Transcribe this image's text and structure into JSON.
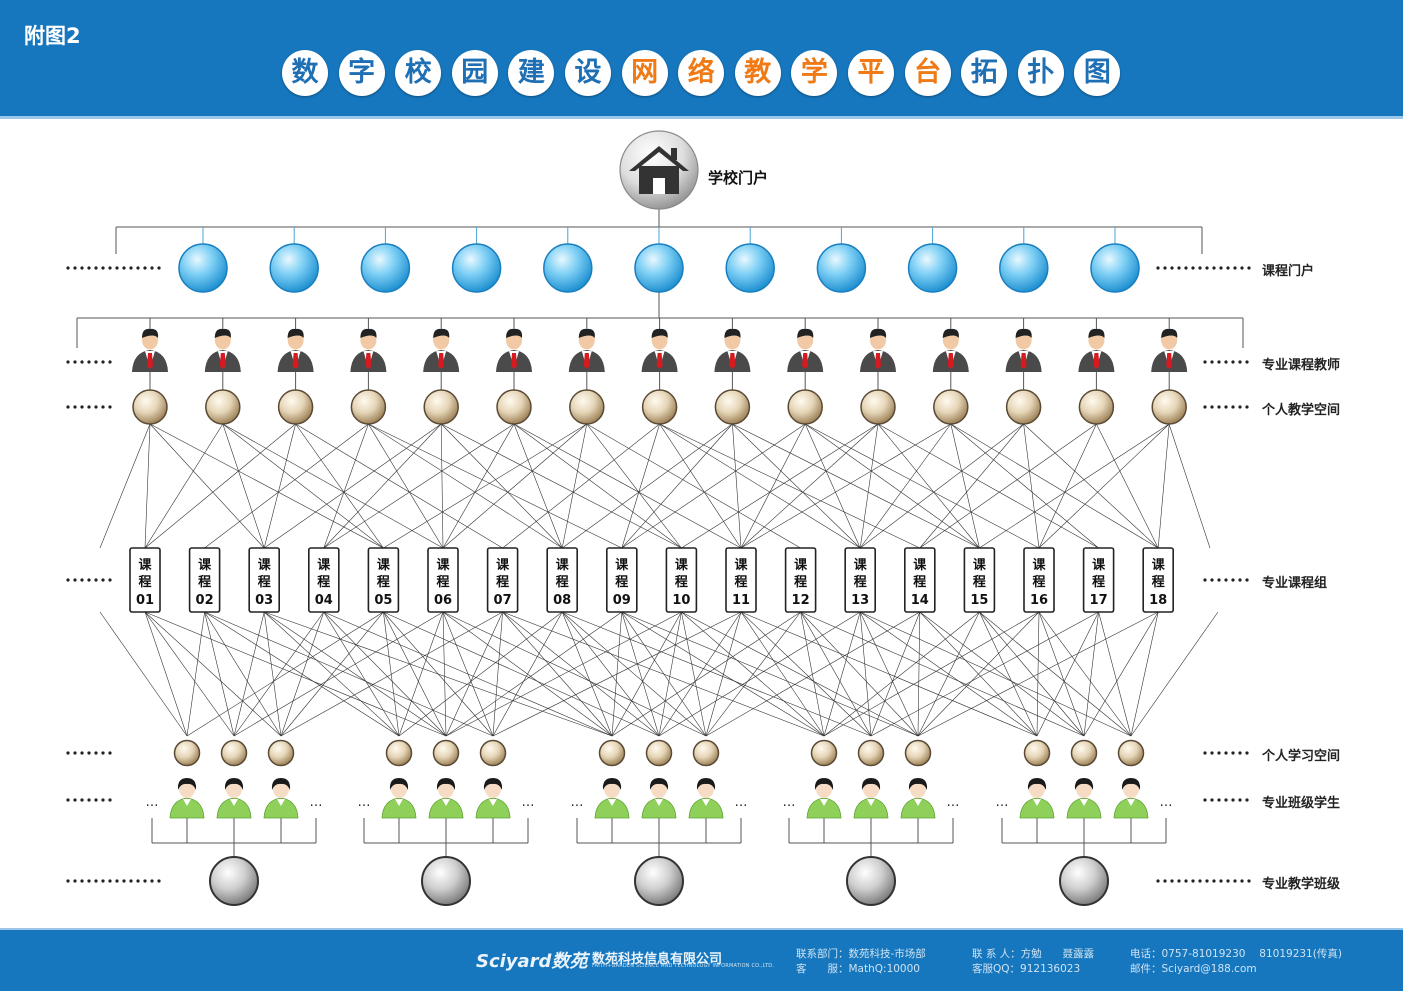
{
  "header": {
    "figure_label": "附图2",
    "title_chars": [
      {
        "ch": "数",
        "hl": false
      },
      {
        "ch": "字",
        "hl": false
      },
      {
        "ch": "校",
        "hl": false
      },
      {
        "ch": "园",
        "hl": false
      },
      {
        "ch": "建",
        "hl": false
      },
      {
        "ch": "设",
        "hl": false
      },
      {
        "ch": "网",
        "hl": true
      },
      {
        "ch": "络",
        "hl": true
      },
      {
        "ch": "教",
        "hl": true
      },
      {
        "ch": "学",
        "hl": true
      },
      {
        "ch": "平",
        "hl": true
      },
      {
        "ch": "台",
        "hl": true
      },
      {
        "ch": "拓",
        "hl": false
      },
      {
        "ch": "扑",
        "hl": false
      },
      {
        "ch": "图",
        "hl": false
      }
    ]
  },
  "diagram": {
    "root": {
      "label": "学校门户",
      "icon": "house-icon"
    },
    "rows": [
      {
        "key": "course_portal",
        "label": "课程门户",
        "count": 11,
        "icon": "blue-sphere-icon"
      },
      {
        "key": "teachers",
        "label": "专业课程教师",
        "count": 15,
        "icon": "teacher-icon"
      },
      {
        "key": "teaching_space",
        "label": "个人教学空间",
        "count": 15,
        "icon": "tan-sphere-icon"
      },
      {
        "key": "course_group",
        "label": "专业课程组",
        "count": 18,
        "icon": "course-box"
      },
      {
        "key": "learning_space",
        "label": "个人学习空间",
        "count": 15,
        "icon": "tan-sphere-icon"
      },
      {
        "key": "students",
        "label": "专业班级学生",
        "count": 15,
        "icon": "student-icon"
      },
      {
        "key": "classes",
        "label": "专业教学班级",
        "count": 5,
        "icon": "gray-sphere-icon"
      }
    ],
    "course_prefix": "课程",
    "courses": [
      "01",
      "02",
      "03",
      "04",
      "05",
      "06",
      "07",
      "08",
      "09",
      "10",
      "11",
      "12",
      "13",
      "14",
      "15",
      "16",
      "17",
      "18"
    ],
    "ellipsis": "…",
    "colors": {
      "header_bg": "#1677be",
      "title_accent": "#ef7a16",
      "title_main": "#1f6fb4",
      "portal_sphere": "#4fb7ec",
      "space_sphere": "#c9b08a",
      "class_sphere": "#9a9a9a",
      "student_shirt": "#8fd05a",
      "teacher_tie": "#d71920"
    }
  },
  "footer": {
    "brand": "Sciyard数苑",
    "company": "数苑科技信息有限公司",
    "company_en": "FAITH+GARDEN SCIENCE AND TECHNOLOGY INFORMATION CO.,LTD.",
    "dept": "联系部门：数苑科技-市场部",
    "service": "客　　服：MathQ:10000",
    "contact": "联 系 人：方勉　　聂露露",
    "qq": "客服QQ：912136023",
    "phone": "电话：0757-81019230　 81019231(传真)",
    "email": "邮件：Sciyard@188.com"
  }
}
